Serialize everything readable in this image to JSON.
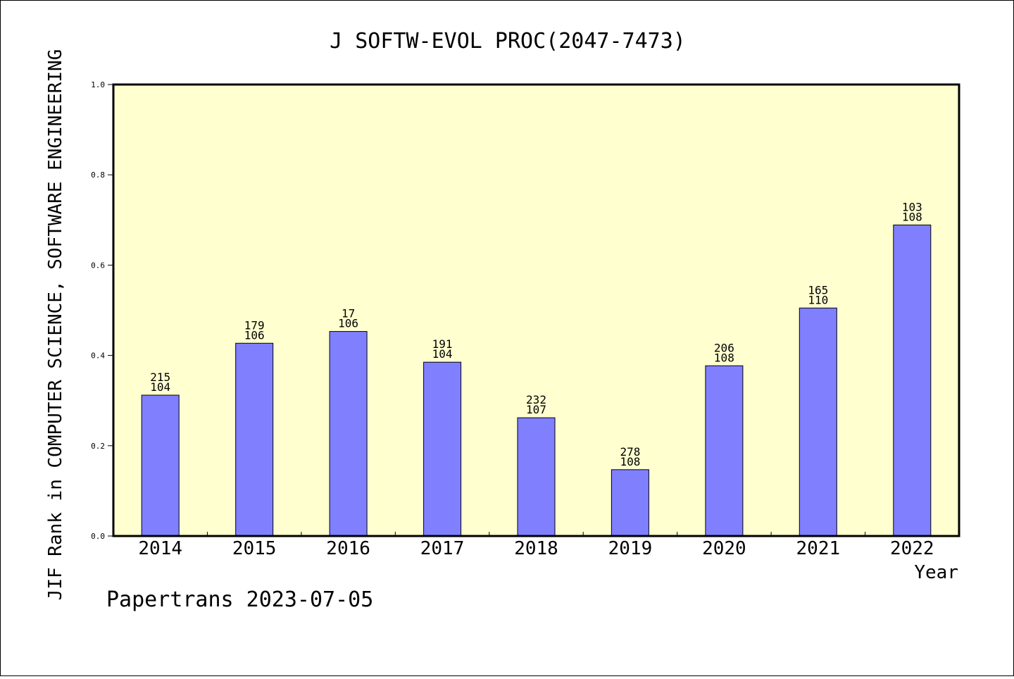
{
  "chart_data": {
    "type": "bar",
    "title": "J SOFTW-EVOL PROC(2047-7473)",
    "xlabel": "Year",
    "ylabel": "JIF Rank in COMPUTER SCIENCE, SOFTWARE ENGINEERING",
    "ylim": [
      0,
      1.0
    ],
    "yticks": [
      "0.0",
      "0.2",
      "0.4",
      "0.6",
      "0.8",
      "1.0"
    ],
    "categories": [
      "2014",
      "2015",
      "2016",
      "2017",
      "2018",
      "2019",
      "2020",
      "2021",
      "2022"
    ],
    "values": [
      0.312,
      0.427,
      0.453,
      0.385,
      0.262,
      0.147,
      0.377,
      0.505,
      0.689
    ],
    "labels_top": [
      "215",
      "179",
      "17",
      "191",
      "232",
      "278",
      "206",
      "165",
      "103"
    ],
    "labels_bottom": [
      "104",
      "106",
      "106",
      "104",
      "107",
      "108",
      "108",
      "110",
      "108"
    ],
    "grid": false,
    "legend": "none",
    "plot_background": "#ffffd0",
    "bar_color": "#8080ff"
  },
  "watermark": "Papertrans 2023-07-05"
}
